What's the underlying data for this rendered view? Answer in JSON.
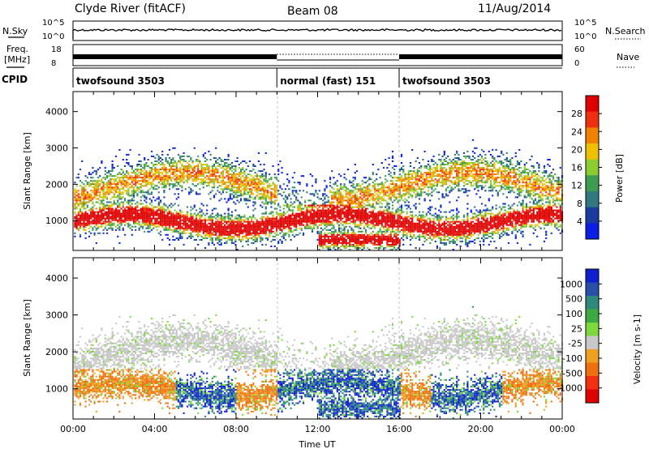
{
  "header": {
    "station": "Clyde River (fitACF)",
    "beam": "Beam 08",
    "date": "11/Aug/2014"
  },
  "top_strip": {
    "nsky_label": "N.Sky",
    "nsearch_label": "N.Search",
    "noise_tick_high": "10^5",
    "noise_tick_low": "10^0",
    "freq_label_1": "Freq.",
    "freq_label_2": "[MHz]",
    "freq_tick_high": "18",
    "freq_tick_low": "8",
    "nave_label": "Nave",
    "nave_tick_high": "60",
    "nave_tick_low": "0",
    "cpid_label": "CPID",
    "cpid_segments": [
      {
        "name": "twofsound 3503",
        "start_h": 0,
        "end_h": 10
      },
      {
        "name": "normal (fast) 151",
        "start_h": 10,
        "end_h": 16
      },
      {
        "name": "twofsound 3503",
        "start_h": 16,
        "end_h": 24
      }
    ]
  },
  "chart_data": [
    {
      "type": "heatmap",
      "title": "",
      "xlabel": "Time UT",
      "ylabel": "Slant Range [km]",
      "xlim_hours": [
        0,
        24
      ],
      "ylim": [
        180,
        4550
      ],
      "x_tick_labels": [
        "00:00",
        "04:00",
        "08:00",
        "12:00",
        "16:00",
        "20:00",
        "00:00"
      ],
      "y_ticks": [
        1000,
        2000,
        3000,
        4000
      ],
      "colorbar": {
        "label": "Power [dB]",
        "ticks": [
          "4",
          "8",
          "12",
          "16",
          "20",
          "24",
          "28"
        ],
        "range": [
          0,
          30
        ],
        "colors": [
          "#0a1ee8",
          "#1a3c9e",
          "#2e7a80",
          "#3c9c50",
          "#8ccc30",
          "#f0c000",
          "#f08000",
          "#ee3010",
          "#e00000"
        ]
      },
      "echo_regions_description_hours_km": [
        {
          "t_range": [
            0,
            10
          ],
          "range_km": [
            600,
            2800
          ],
          "peak_db": 28
        },
        {
          "t_range": [
            10,
            16
          ],
          "range_km": [
            300,
            2500
          ],
          "peak_db": 30
        },
        {
          "t_range": [
            16,
            24
          ],
          "range_km": [
            300,
            2900
          ],
          "peak_db": 28
        }
      ]
    },
    {
      "type": "heatmap",
      "title": "",
      "xlabel": "Time UT",
      "ylabel": "Slant Range [km]",
      "xlim_hours": [
        0,
        24
      ],
      "ylim": [
        180,
        4550
      ],
      "x_tick_labels": [
        "00:00",
        "04:00",
        "08:00",
        "12:00",
        "16:00",
        "20:00",
        "00:00"
      ],
      "y_ticks": [
        1000,
        2000,
        3000,
        4000
      ],
      "colorbar": {
        "label": "Velocity [m s-1]",
        "ticks": [
          "1000",
          "500",
          "100",
          "25",
          "-25",
          "-100",
          "-500",
          "-1000"
        ],
        "range": [
          -1000,
          1000
        ],
        "colors": [
          "#1020d0",
          "#2850a8",
          "#2e8a7c",
          "#3caa40",
          "#7cd83c",
          "#c8c8c8",
          "#f0a020",
          "#f07010",
          "#f03010",
          "#e00000"
        ]
      }
    }
  ]
}
